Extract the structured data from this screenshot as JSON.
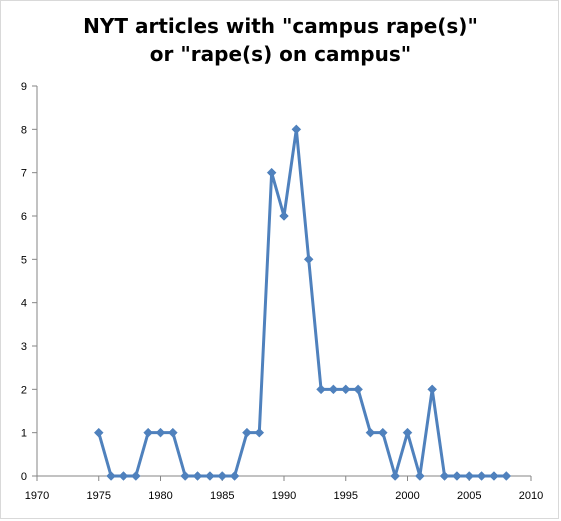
{
  "chart_data": {
    "type": "line",
    "title_lines": [
      "NYT articles with \"campus rape(s)\"",
      "or \"rape(s) on campus\""
    ],
    "xlabel": "",
    "ylabel": "",
    "xlim": [
      1970,
      2010
    ],
    "ylim": [
      0,
      9
    ],
    "x_ticks": [
      1970,
      1975,
      1980,
      1985,
      1990,
      1995,
      2000,
      2005,
      2010
    ],
    "y_ticks": [
      0,
      1,
      2,
      3,
      4,
      5,
      6,
      7,
      8,
      9
    ],
    "grid": false,
    "legend": "none",
    "series": [
      {
        "color": "#4f81bd",
        "marker": "diamond",
        "x": [
          1975,
          1976,
          1977,
          1978,
          1979,
          1980,
          1981,
          1982,
          1983,
          1984,
          1985,
          1986,
          1987,
          1988,
          1989,
          1990,
          1991,
          1992,
          1993,
          1994,
          1995,
          1996,
          1997,
          1998,
          1999,
          2000,
          2001,
          2002,
          2003,
          2004,
          2005,
          2006,
          2007,
          2008
        ],
        "y": [
          1,
          0,
          0,
          0,
          1,
          1,
          1,
          0,
          0,
          0,
          0,
          0,
          1,
          1,
          7,
          6,
          8,
          5,
          2,
          2,
          2,
          2,
          1,
          1,
          0,
          1,
          0,
          2,
          0,
          0,
          0,
          0,
          0,
          0
        ]
      }
    ]
  }
}
